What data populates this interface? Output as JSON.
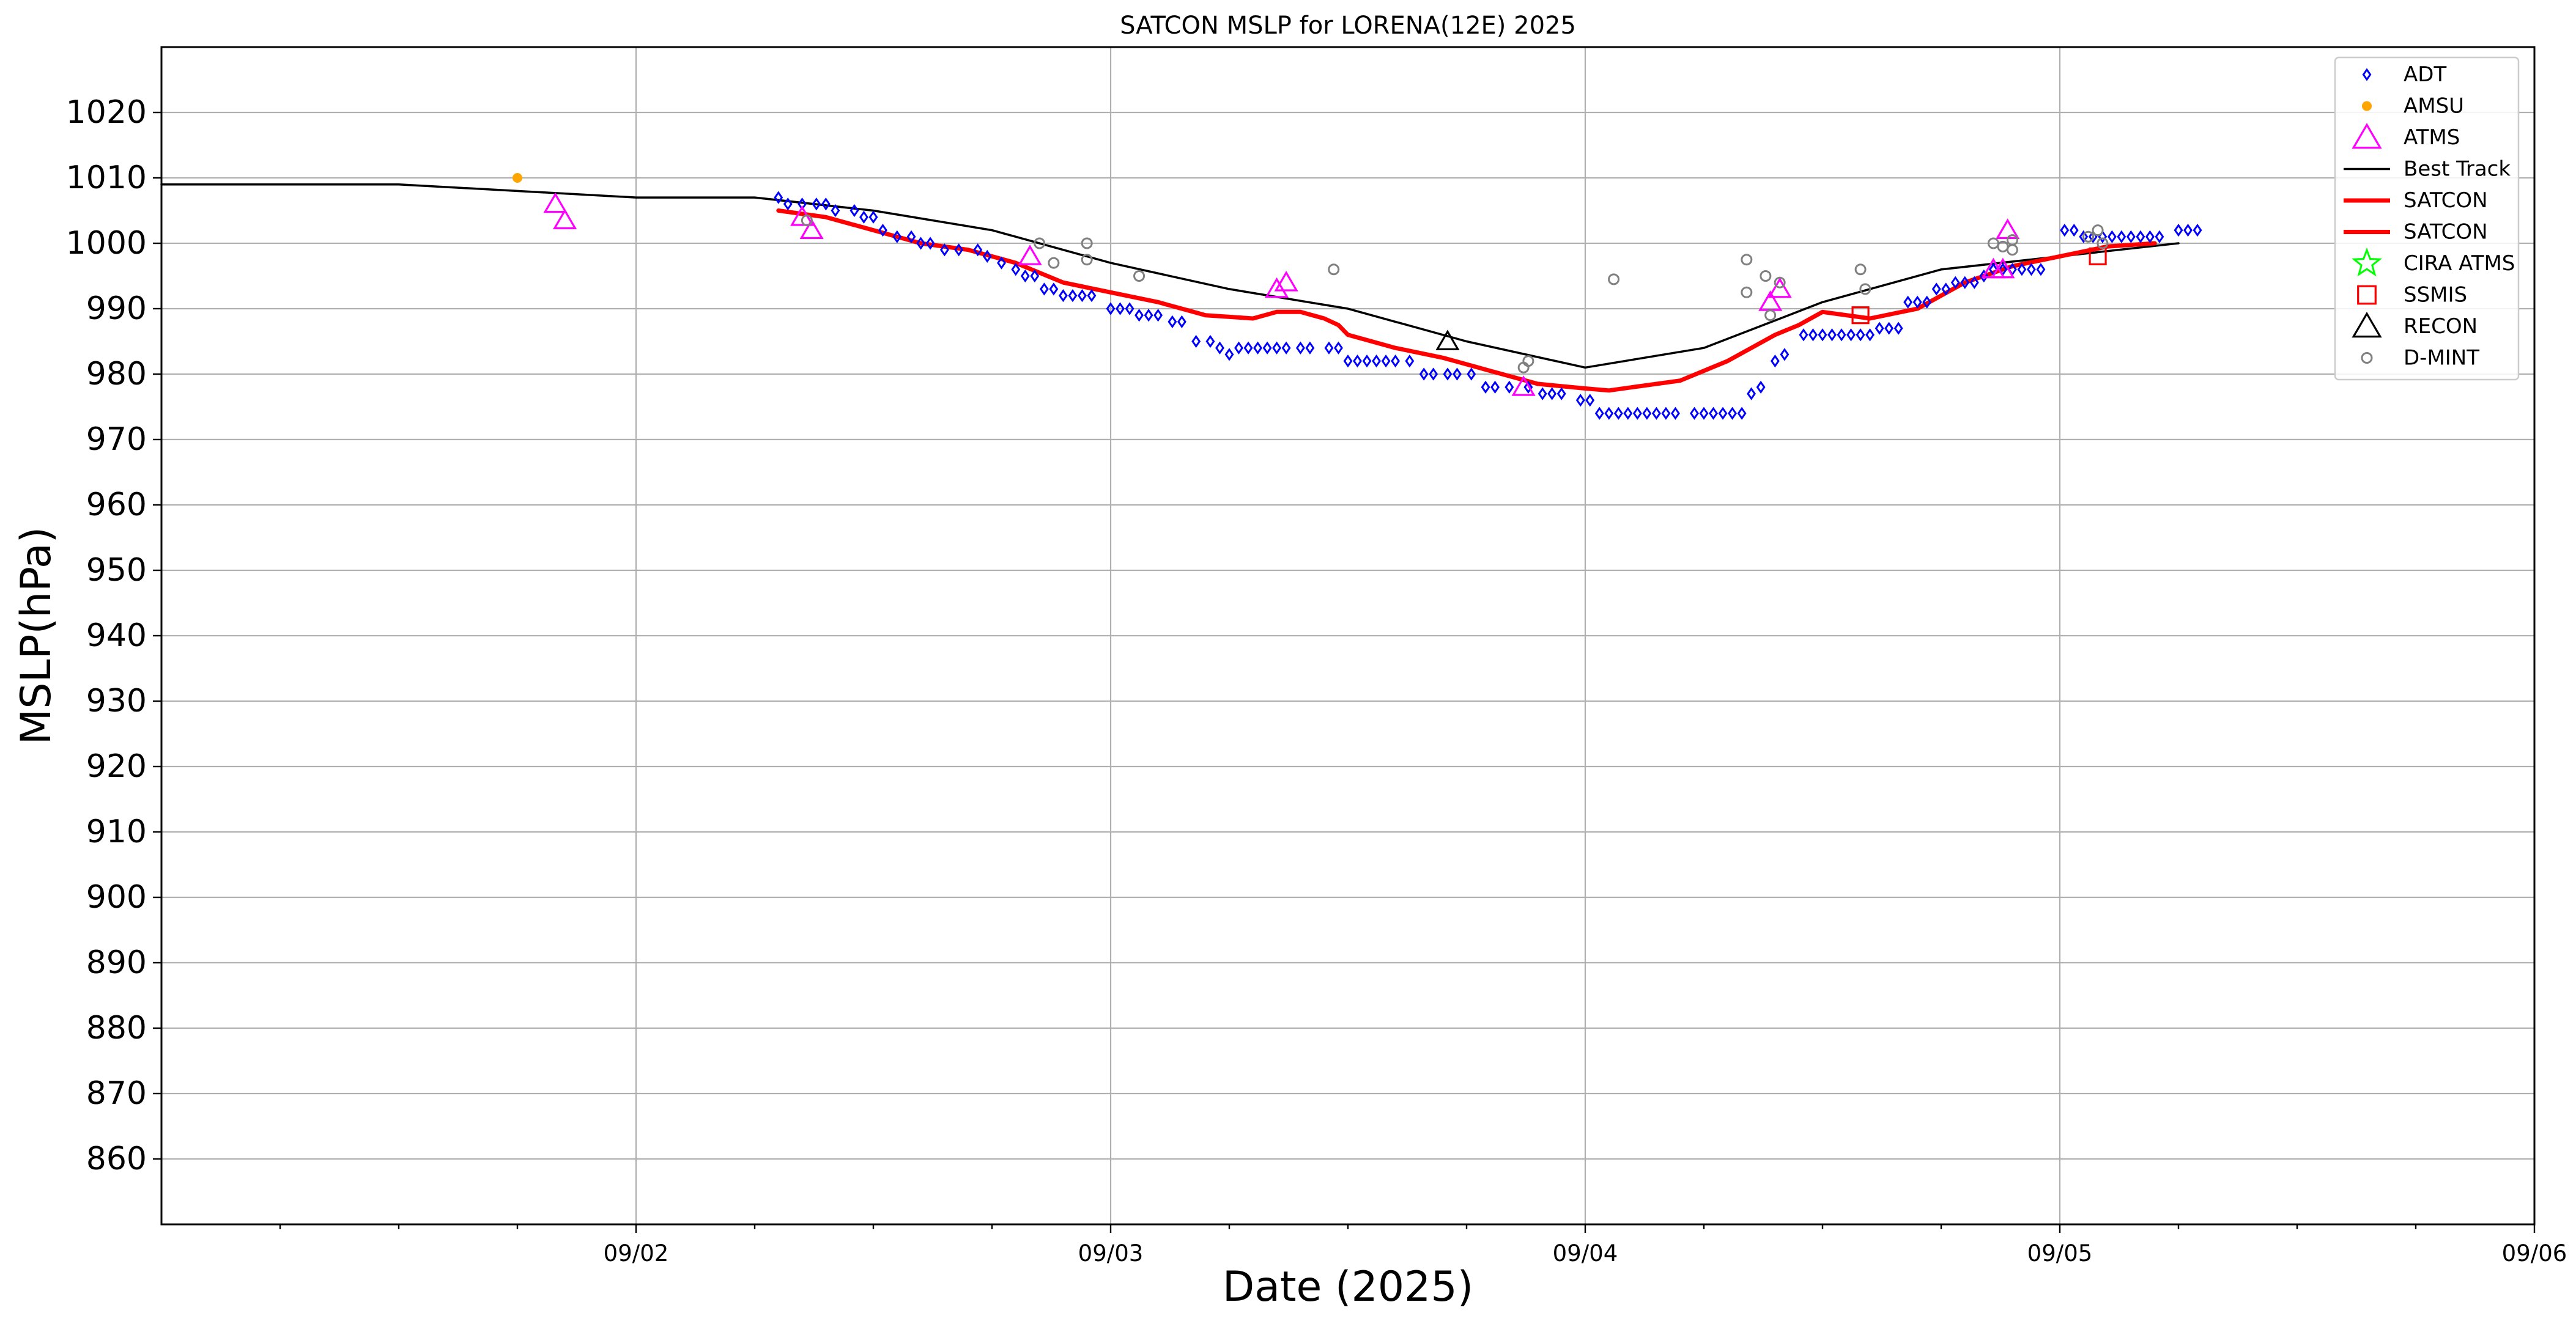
{
  "chart_data": {
    "type": "scatter",
    "title": "SATCON MSLP for LORENA(12E) 2025",
    "xlabel": "Date (2025)",
    "ylabel": "MSLP(hPa)",
    "xlim": [
      0,
      5
    ],
    "ylim": [
      850,
      1030
    ],
    "x_unit": "days from 09/01 00Z",
    "xticks": [
      {
        "x": 1,
        "label": "09/02"
      },
      {
        "x": 2,
        "label": "09/03"
      },
      {
        "x": 3,
        "label": "09/04"
      },
      {
        "x": 4,
        "label": "09/05"
      },
      {
        "x": 5,
        "label": "09/06"
      }
    ],
    "yticks": [
      860,
      870,
      880,
      890,
      900,
      910,
      920,
      930,
      940,
      950,
      960,
      970,
      980,
      990,
      1000,
      1010,
      1020
    ],
    "grid": true,
    "legend_position": "top-right",
    "legend": [
      {
        "label": "ADT",
        "marker": "diamond",
        "color": "#0000ff"
      },
      {
        "label": "AMSU",
        "marker": "dot",
        "color": "#ffa500"
      },
      {
        "label": "ATMS",
        "marker": "triangle",
        "color": "#ff00ff"
      },
      {
        "label": "Best Track",
        "marker": "line",
        "color": "#000000"
      },
      {
        "label": "SATCON",
        "marker": "thickline",
        "color": "#ff0000"
      },
      {
        "label": "SATCON",
        "marker": "thickline",
        "color": "#ff0000"
      },
      {
        "label": "CIRA ATMS",
        "marker": "star",
        "color": "#00ff00"
      },
      {
        "label": "SSMIS",
        "marker": "square",
        "color": "#ff0000"
      },
      {
        "label": "RECON",
        "marker": "triangle",
        "color": "#000000"
      },
      {
        "label": "D-MINT",
        "marker": "circle",
        "color": "#808080"
      }
    ],
    "series": [
      {
        "name": "Best Track",
        "type": "line",
        "color": "#000000",
        "points": [
          [
            0,
            1009
          ],
          [
            0.5,
            1009
          ],
          [
            1,
            1007
          ],
          [
            1.25,
            1007
          ],
          [
            1.5,
            1005
          ],
          [
            1.75,
            1002
          ],
          [
            2,
            997
          ],
          [
            2.25,
            993
          ],
          [
            2.5,
            990
          ],
          [
            2.75,
            985
          ],
          [
            3,
            981
          ],
          [
            3.25,
            984
          ],
          [
            3.5,
            991
          ],
          [
            3.75,
            996
          ],
          [
            4,
            998
          ],
          [
            4.25,
            1000
          ]
        ]
      },
      {
        "name": "SATCON",
        "type": "line",
        "color": "#ff0000",
        "points": [
          [
            1.3,
            1005
          ],
          [
            1.4,
            1004
          ],
          [
            1.5,
            1002
          ],
          [
            1.6,
            1000
          ],
          [
            1.7,
            999
          ],
          [
            1.8,
            997
          ],
          [
            1.9,
            994
          ],
          [
            2.0,
            992.5
          ],
          [
            2.1,
            991
          ],
          [
            2.2,
            989
          ],
          [
            2.3,
            988.5
          ],
          [
            2.35,
            989.5
          ],
          [
            2.4,
            989.5
          ],
          [
            2.45,
            988.5
          ],
          [
            2.48,
            987.5
          ],
          [
            2.5,
            986
          ],
          [
            2.6,
            984
          ],
          [
            2.7,
            982.5
          ],
          [
            2.8,
            980.5
          ],
          [
            2.9,
            978.5
          ],
          [
            3.0,
            977.8
          ],
          [
            3.05,
            977.5
          ],
          [
            3.1,
            978
          ],
          [
            3.2,
            979
          ],
          [
            3.3,
            982
          ],
          [
            3.4,
            986
          ],
          [
            3.45,
            987.5
          ],
          [
            3.5,
            989.5
          ],
          [
            3.6,
            988.5
          ],
          [
            3.7,
            990
          ],
          [
            3.8,
            994
          ],
          [
            3.9,
            996.5
          ],
          [
            4.0,
            998
          ],
          [
            4.1,
            999.5
          ],
          [
            4.2,
            1000
          ]
        ]
      },
      {
        "name": "ADT",
        "type": "scatter",
        "marker": "diamond",
        "color": "#0000ff",
        "points": [
          [
            1.3,
            1007
          ],
          [
            1.32,
            1006
          ],
          [
            1.35,
            1006
          ],
          [
            1.38,
            1006
          ],
          [
            1.4,
            1006
          ],
          [
            1.42,
            1005
          ],
          [
            1.46,
            1005
          ],
          [
            1.48,
            1004
          ],
          [
            1.5,
            1004
          ],
          [
            1.52,
            1002
          ],
          [
            1.55,
            1001
          ],
          [
            1.58,
            1001
          ],
          [
            1.6,
            1000
          ],
          [
            1.62,
            1000
          ],
          [
            1.65,
            999
          ],
          [
            1.68,
            999
          ],
          [
            1.72,
            999
          ],
          [
            1.74,
            998
          ],
          [
            1.77,
            997
          ],
          [
            1.8,
            996
          ],
          [
            1.82,
            995
          ],
          [
            1.84,
            995
          ],
          [
            1.86,
            993
          ],
          [
            1.88,
            993
          ],
          [
            1.9,
            992
          ],
          [
            1.92,
            992
          ],
          [
            1.94,
            992
          ],
          [
            1.96,
            992
          ],
          [
            2.0,
            990
          ],
          [
            2.02,
            990
          ],
          [
            2.04,
            990
          ],
          [
            2.06,
            989
          ],
          [
            2.08,
            989
          ],
          [
            2.1,
            989
          ],
          [
            2.13,
            988
          ],
          [
            2.15,
            988
          ],
          [
            2.18,
            985
          ],
          [
            2.21,
            985
          ],
          [
            2.23,
            984
          ],
          [
            2.25,
            983
          ],
          [
            2.27,
            984
          ],
          [
            2.29,
            984
          ],
          [
            2.31,
            984
          ],
          [
            2.33,
            984
          ],
          [
            2.35,
            984
          ],
          [
            2.37,
            984
          ],
          [
            2.4,
            984
          ],
          [
            2.42,
            984
          ],
          [
            2.46,
            984
          ],
          [
            2.48,
            984
          ],
          [
            2.5,
            982
          ],
          [
            2.52,
            982
          ],
          [
            2.54,
            982
          ],
          [
            2.56,
            982
          ],
          [
            2.58,
            982
          ],
          [
            2.6,
            982
          ],
          [
            2.63,
            982
          ],
          [
            2.66,
            980
          ],
          [
            2.68,
            980
          ],
          [
            2.71,
            980
          ],
          [
            2.73,
            980
          ],
          [
            2.76,
            980
          ],
          [
            2.79,
            978
          ],
          [
            2.81,
            978
          ],
          [
            2.84,
            978
          ],
          [
            2.88,
            978
          ],
          [
            2.91,
            977
          ],
          [
            2.93,
            977
          ],
          [
            2.95,
            977
          ],
          [
            2.99,
            976
          ],
          [
            3.01,
            976
          ],
          [
            3.03,
            974
          ],
          [
            3.05,
            974
          ],
          [
            3.07,
            974
          ],
          [
            3.09,
            974
          ],
          [
            3.11,
            974
          ],
          [
            3.13,
            974
          ],
          [
            3.15,
            974
          ],
          [
            3.17,
            974
          ],
          [
            3.19,
            974
          ],
          [
            3.23,
            974
          ],
          [
            3.25,
            974
          ],
          [
            3.27,
            974
          ],
          [
            3.29,
            974
          ],
          [
            3.31,
            974
          ],
          [
            3.33,
            974
          ],
          [
            3.35,
            977
          ],
          [
            3.37,
            978
          ],
          [
            3.4,
            982
          ],
          [
            3.42,
            983
          ],
          [
            3.46,
            986
          ],
          [
            3.48,
            986
          ],
          [
            3.5,
            986
          ],
          [
            3.52,
            986
          ],
          [
            3.54,
            986
          ],
          [
            3.56,
            986
          ],
          [
            3.58,
            986
          ],
          [
            3.6,
            986
          ],
          [
            3.62,
            987
          ],
          [
            3.64,
            987
          ],
          [
            3.66,
            987
          ],
          [
            3.68,
            991
          ],
          [
            3.7,
            991
          ],
          [
            3.72,
            991
          ],
          [
            3.74,
            993
          ],
          [
            3.76,
            993
          ],
          [
            3.78,
            994
          ],
          [
            3.8,
            994
          ],
          [
            3.82,
            994
          ],
          [
            3.84,
            995
          ],
          [
            3.86,
            996
          ],
          [
            3.88,
            996
          ],
          [
            3.9,
            996
          ],
          [
            3.92,
            996
          ],
          [
            3.94,
            996
          ],
          [
            3.96,
            996
          ],
          [
            4.01,
            1002
          ],
          [
            4.03,
            1002
          ],
          [
            4.05,
            1001
          ],
          [
            4.07,
            1001
          ],
          [
            4.09,
            1001
          ],
          [
            4.11,
            1001
          ],
          [
            4.13,
            1001
          ],
          [
            4.15,
            1001
          ],
          [
            4.17,
            1001
          ],
          [
            4.19,
            1001
          ],
          [
            4.21,
            1001
          ],
          [
            4.25,
            1002
          ],
          [
            4.27,
            1002
          ],
          [
            4.29,
            1002
          ]
        ]
      },
      {
        "name": "AMSU",
        "type": "scatter",
        "marker": "dot",
        "color": "#ffa500",
        "points": [
          [
            0.75,
            1010
          ]
        ]
      },
      {
        "name": "ATMS",
        "type": "scatter",
        "marker": "triangle",
        "color": "#ff00ff",
        "points": [
          [
            0.83,
            1006
          ],
          [
            0.85,
            1003.5
          ],
          [
            1.35,
            1004
          ],
          [
            1.37,
            1002
          ],
          [
            1.83,
            998
          ],
          [
            2.35,
            993
          ],
          [
            2.37,
            994
          ],
          [
            2.87,
            978
          ],
          [
            3.39,
            991
          ],
          [
            3.41,
            993
          ],
          [
            3.86,
            996
          ],
          [
            3.88,
            996
          ],
          [
            3.89,
            1002
          ]
        ]
      },
      {
        "name": "SSMIS",
        "type": "scatter",
        "marker": "square",
        "color": "#ff0000",
        "points": [
          [
            3.58,
            989
          ],
          [
            4.08,
            998
          ]
        ]
      },
      {
        "name": "RECON",
        "type": "scatter",
        "marker": "triangle",
        "color": "#000000",
        "points": [
          [
            2.71,
            985
          ]
        ]
      },
      {
        "name": "D-MINT",
        "type": "scatter",
        "marker": "circle",
        "color": "#808080",
        "points": [
          [
            1.36,
            1003.5
          ],
          [
            1.85,
            1000
          ],
          [
            1.88,
            997
          ],
          [
            1.95,
            1000
          ],
          [
            1.95,
            997.5
          ],
          [
            2.06,
            995
          ],
          [
            2.47,
            996
          ],
          [
            2.87,
            981
          ],
          [
            2.88,
            982
          ],
          [
            3.06,
            994.5
          ],
          [
            3.34,
            997.5
          ],
          [
            3.34,
            992.5
          ],
          [
            3.38,
            995
          ],
          [
            3.39,
            989
          ],
          [
            3.41,
            994
          ],
          [
            3.58,
            996
          ],
          [
            3.59,
            993
          ],
          [
            3.86,
            1000
          ],
          [
            3.88,
            999.5
          ],
          [
            3.9,
            999
          ],
          [
            3.9,
            1000.5
          ],
          [
            4.06,
            1001
          ],
          [
            4.08,
            1002
          ],
          [
            4.09,
            1000
          ]
        ]
      }
    ]
  }
}
